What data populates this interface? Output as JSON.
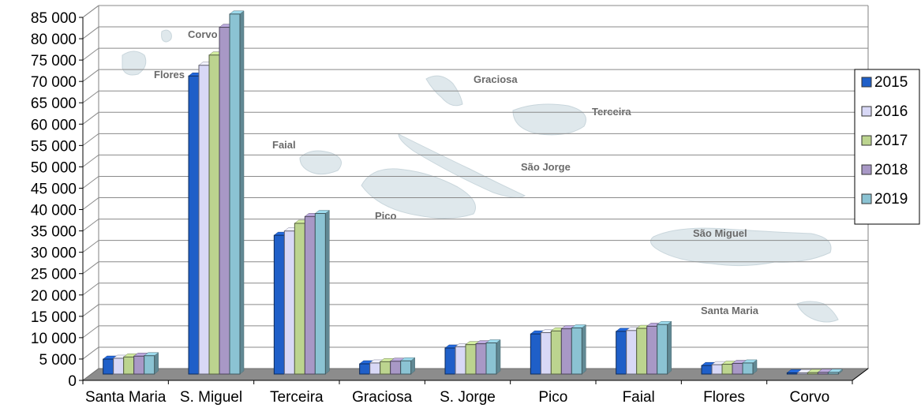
{
  "chart_data": {
    "type": "bar",
    "title": "",
    "xlabel": "",
    "ylabel": "",
    "categories": [
      "Santa Maria",
      "S. Miguel",
      "Terceira",
      "Graciosa",
      "S. Jorge",
      "Pico",
      "Faial",
      "Flores",
      "Corvo"
    ],
    "series": [
      {
        "name": "2015",
        "color": "#1f5fc8",
        "values": [
          3500,
          69800,
          32500,
          2400,
          6100,
          9400,
          10000,
          2000,
          300
        ]
      },
      {
        "name": "2016",
        "color": "#d8d8f6",
        "values": [
          3700,
          72300,
          33500,
          2600,
          6400,
          9700,
          10200,
          2200,
          300
        ]
      },
      {
        "name": "2017",
        "color": "#bcd48f",
        "values": [
          4000,
          74700,
          35300,
          2900,
          6900,
          10100,
          10700,
          2300,
          350
        ]
      },
      {
        "name": "2018",
        "color": "#a898c6",
        "values": [
          4200,
          81200,
          36900,
          3000,
          7100,
          10600,
          11200,
          2500,
          400
        ]
      },
      {
        "name": "2019",
        "color": "#8bc3d3",
        "values": [
          4300,
          84300,
          37600,
          3100,
          7300,
          10800,
          11600,
          2600,
          400
        ]
      }
    ],
    "ylim": [
      0,
      85000
    ],
    "y_ticks": [
      "0",
      "5 000",
      "10 000",
      "15 000",
      "20 000",
      "25 000",
      "30 000",
      "35 000",
      "40 000",
      "45 000",
      "50 000",
      "55 000",
      "60 000",
      "65 000",
      "70 000",
      "75 000",
      "80 000",
      "85 000"
    ],
    "grid": true,
    "legend_position": "right",
    "background_map_labels": [
      "Corvo",
      "Flores",
      "Graciosa",
      "Terceira",
      "Faial",
      "São Jorge",
      "Pico",
      "São Miguel",
      "Santa Maria"
    ]
  }
}
